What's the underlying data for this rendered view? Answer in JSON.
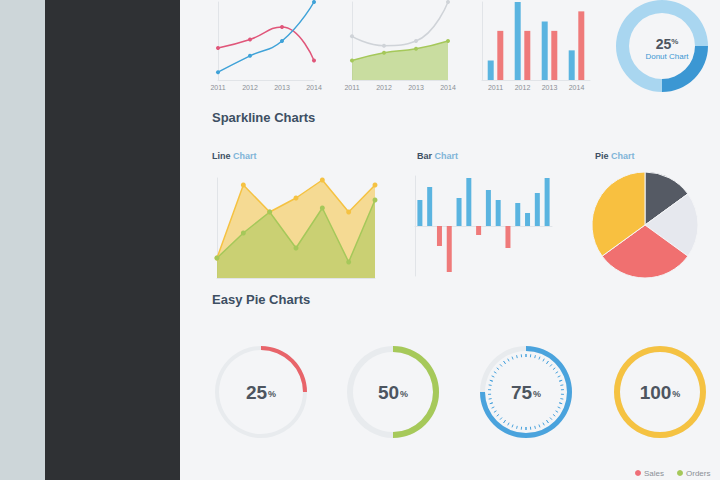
{
  "headings": [
    "Sparkline Charts",
    "Easy Pie Charts"
  ],
  "footer_legend": [
    {
      "name": "Sales",
      "color": "#ef6f78"
    },
    {
      "name": "Orders",
      "color": "#a5c85a"
    }
  ],
  "chart_data": [
    {
      "type": "line",
      "categories": [
        "2011",
        "2012",
        "2013",
        "2014"
      ],
      "series": [
        {
          "color": "#e0567a",
          "values": [
            41,
            52,
            68,
            25
          ]
        },
        {
          "color": "#3fa2d8",
          "values": [
            10,
            31,
            50,
            100
          ]
        }
      ],
      "ylim": [
        0,
        100
      ],
      "tick_labels": "x",
      "marker": "circle",
      "line_style": "smooth"
    },
    {
      "type": "line",
      "categories": [
        "2011",
        "2012",
        "2013",
        "2014"
      ],
      "series": [
        {
          "type": "area",
          "color": "#a5c85a",
          "values": [
            25,
            35,
            40,
            50
          ]
        },
        {
          "type": "line",
          "color": "#cfd3d8",
          "values": [
            56,
            44,
            50,
            100
          ]
        }
      ],
      "ylim": [
        0,
        100
      ],
      "tick_labels": "x",
      "marker": "circle",
      "line_style": "smooth"
    },
    {
      "type": "bar",
      "categories": [
        "2011",
        "2012",
        "2013",
        "2014"
      ],
      "series": [
        {
          "color": "#5ab4e0",
          "values": [
            25,
            100,
            75,
            38
          ]
        },
        {
          "color": "#ef7a7a",
          "values": [
            63,
            63,
            63,
            88
          ]
        }
      ],
      "ylim": [
        0,
        100
      ],
      "tick_labels": "x"
    },
    {
      "type": "donut",
      "title": "Donut Chart",
      "values": [
        25,
        75
      ],
      "value_labels": [
        "25%",
        null
      ],
      "colors": [
        "#3b97d3",
        "#a9d6f0"
      ]
    },
    {
      "type": "line",
      "title": "Line Chart",
      "categories": [
        null,
        null,
        null,
        null,
        null,
        null,
        null
      ],
      "series": [
        {
          "type": "area",
          "color": "#f5c242",
          "values": [
            20,
            93,
            66,
            80,
            98,
            66,
            93
          ]
        },
        {
          "type": "area",
          "color": "#a5c85a",
          "values": [
            20,
            45,
            66,
            30,
            70,
            16,
            78
          ]
        }
      ],
      "ylim": [
        0,
        100
      ],
      "tick_labels": false,
      "marker": "circle"
    },
    {
      "type": "bar",
      "title": "Bar Chart",
      "categories": [
        null,
        null,
        null,
        null,
        null,
        null,
        null,
        null,
        null,
        null,
        null,
        null,
        null,
        null
      ],
      "values": [
        26,
        39,
        -20,
        -46,
        28,
        48,
        -9,
        36,
        26,
        -22,
        23,
        13,
        33,
        48
      ],
      "colors": [
        "#5ab4e0",
        "#5ab4e0",
        "#ef7a7a",
        "#ef7a7a",
        "#5ab4e0",
        "#5ab4e0",
        "#ef7a7a",
        "#5ab4e0",
        "#5ab4e0",
        "#ef7a7a",
        "#5ab4e0",
        "#5ab4e0",
        "#5ab4e0",
        "#5ab4e0"
      ],
      "ylim": [
        -50,
        50
      ],
      "tick_labels": false
    },
    {
      "type": "pie",
      "title": "Pie Chart",
      "values": [
        15,
        20,
        30,
        35
      ],
      "colors": [
        "#555a64",
        "#e6e8ee",
        "#f07070",
        "#f8c040"
      ]
    },
    {
      "type": "gauge",
      "values": [
        25
      ],
      "value_labels": [
        "25%"
      ],
      "color": "#e8646a",
      "ylim": [
        0,
        100
      ]
    },
    {
      "type": "gauge",
      "values": [
        50
      ],
      "value_labels": [
        "50%"
      ],
      "color": "#a6c95a",
      "ylim": [
        0,
        100
      ]
    },
    {
      "type": "gauge",
      "values": [
        75
      ],
      "value_labels": [
        "75%"
      ],
      "color": "#4aa3dd",
      "ylim": [
        0,
        100
      ],
      "marker": "ticks"
    },
    {
      "type": "gauge",
      "values": [
        100
      ],
      "value_labels": [
        "100%"
      ],
      "color": "#f5c242",
      "ylim": [
        0,
        100
      ]
    }
  ]
}
